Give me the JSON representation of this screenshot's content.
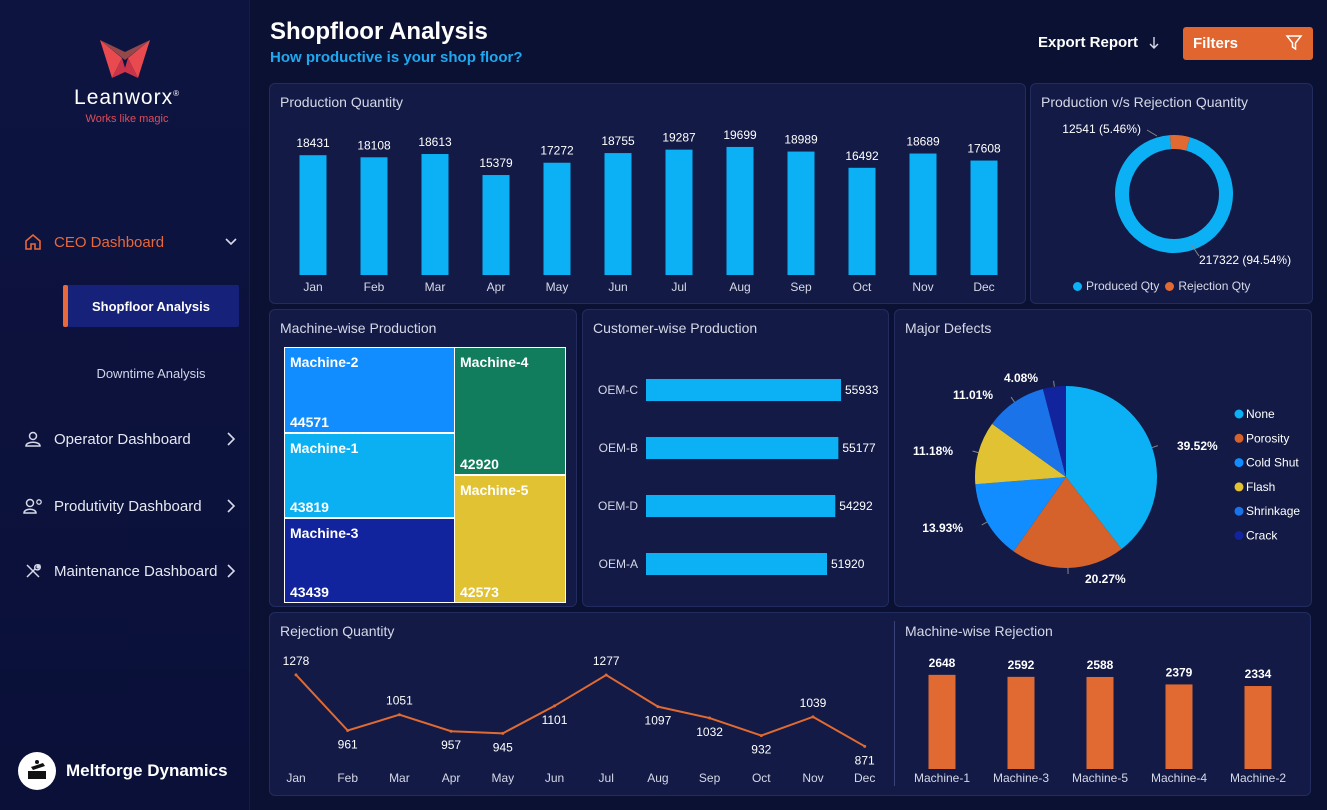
{
  "brand": {
    "name": "Leanworx",
    "tagline": "Works like magic"
  },
  "nav": {
    "ceo": "CEO Dashboard",
    "sub_shopfloor": "Shopfloor Analysis",
    "sub_downtime": "Downtime Analysis",
    "operator": "Operator Dashboard",
    "productivity": "Produtivity Dashboard",
    "maintenance": "Maintenance Dashboard"
  },
  "company": "Meltforge Dynamics",
  "header": {
    "title": "Shopfloor Analysis",
    "subtitle": "How productive is your shop floor?",
    "export_label": "Export Report",
    "filters_label": "Filters"
  },
  "colors": {
    "accent": "#e0652f",
    "bar_blue": "#0cb0f5",
    "orange": "#e06a32"
  },
  "titles": {
    "production": "Production Quantity",
    "prod_vs_rej": "Production v/s Rejection Quantity",
    "machine_prod": "Machine-wise Production",
    "customer_prod": "Customer-wise Production",
    "defects": "Major Defects",
    "rejection": "Rejection Quantity",
    "machine_rej": "Machine-wise Rejection"
  },
  "chart_data": [
    {
      "id": "production",
      "type": "bar",
      "categories": [
        "Jan",
        "Feb",
        "Mar",
        "Apr",
        "May",
        "Jun",
        "Jul",
        "Aug",
        "Sep",
        "Oct",
        "Nov",
        "Dec"
      ],
      "values": [
        18431,
        18108,
        18613,
        15379,
        17272,
        18755,
        19287,
        19699,
        18989,
        16492,
        18689,
        17608
      ],
      "ylim": [
        0,
        20000
      ]
    },
    {
      "id": "prod_vs_rej",
      "type": "pie",
      "labels": [
        "Produced Qty",
        "Rejection Qty"
      ],
      "values": [
        217322,
        12541
      ],
      "data_labels": [
        "217322 (94.54%)",
        "12541 (5.46%)"
      ],
      "colors": [
        "#0cb0f5",
        "#e06a32"
      ],
      "legend": "bottom"
    },
    {
      "id": "machine_prod",
      "type": "heatmap",
      "items": [
        {
          "name": "Machine-2",
          "value": 44571,
          "color": "#118dff"
        },
        {
          "name": "Machine-1",
          "value": 43819,
          "color": "#0ab0f2"
        },
        {
          "name": "Machine-3",
          "value": 43439,
          "color": "#12239e"
        },
        {
          "name": "Machine-4",
          "value": 42920,
          "color": "#117d5c"
        },
        {
          "name": "Machine-5",
          "value": 42573,
          "color": "#e1c233"
        }
      ]
    },
    {
      "id": "customer_prod",
      "type": "bar",
      "orientation": "horizontal",
      "categories": [
        "OEM-C",
        "OEM-B",
        "OEM-D",
        "OEM-A"
      ],
      "values": [
        55933,
        55177,
        54292,
        51920
      ]
    },
    {
      "id": "defects",
      "type": "pie",
      "labels": [
        "None",
        "Porosity",
        "Cold Shut",
        "Flash",
        "Shrinkage",
        "Crack"
      ],
      "values": [
        39.52,
        20.27,
        13.93,
        11.18,
        11.01,
        4.08
      ],
      "data_labels": [
        "39.52%",
        "20.27%",
        "13.93%",
        "11.18%",
        "11.01%",
        "4.08%"
      ],
      "colors": [
        "#0cb0f5",
        "#d6622b",
        "#118dff",
        "#e1c233",
        "#1a73e8",
        "#12239e"
      ],
      "legend": "right"
    },
    {
      "id": "rejection",
      "type": "line",
      "categories": [
        "Jan",
        "Feb",
        "Mar",
        "Apr",
        "May",
        "Jun",
        "Jul",
        "Aug",
        "Sep",
        "Oct",
        "Nov",
        "Dec"
      ],
      "values": [
        1278,
        961,
        1051,
        957,
        945,
        1101,
        1277,
        1097,
        1032,
        932,
        1039,
        871
      ],
      "ylim": [
        850,
        1300
      ]
    },
    {
      "id": "machine_rej",
      "type": "bar",
      "categories": [
        "Machine-1",
        "Machine-3",
        "Machine-5",
        "Machine-4",
        "Machine-2"
      ],
      "values": [
        2648,
        2592,
        2588,
        2379,
        2334
      ],
      "ylim": [
        0,
        2700
      ]
    }
  ]
}
